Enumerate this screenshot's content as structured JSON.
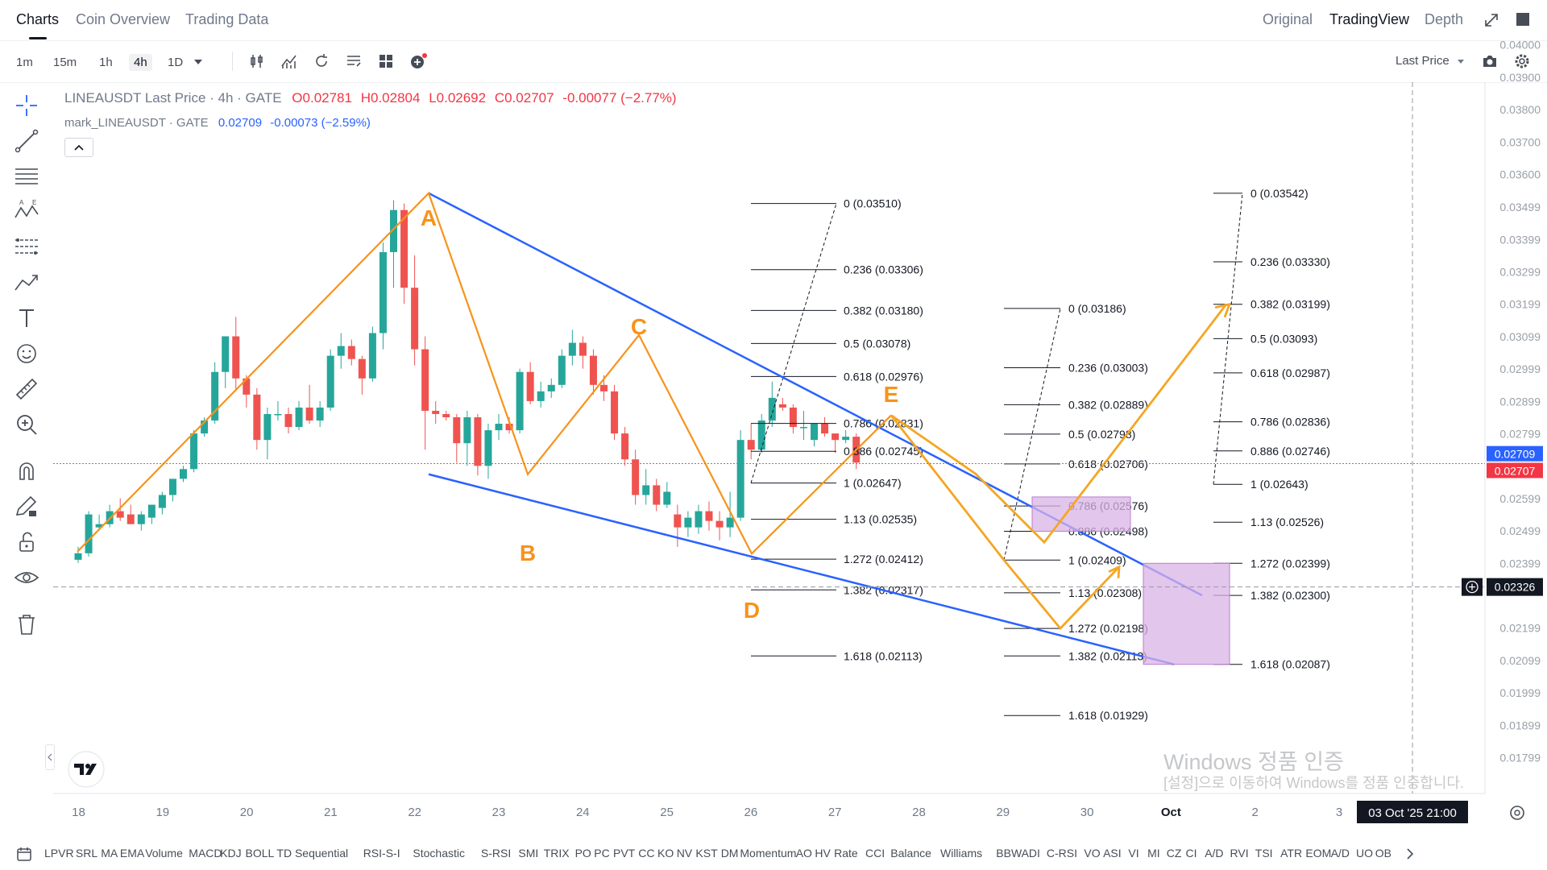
{
  "nav": {
    "tabs": [
      "Charts",
      "Coin Overview",
      "Trading Data"
    ],
    "views": [
      "Original",
      "TradingView",
      "Depth"
    ]
  },
  "toolbar": {
    "timeframes": [
      "1m",
      "15m",
      "1h",
      "4h",
      "1D"
    ],
    "active_timeframe": "4h",
    "price_source": "Last Price"
  },
  "legend": {
    "symbol": "LINEAUSDT Last Price · 4h · GATE",
    "open": "O0.02781",
    "high": "H0.02804",
    "low": "L0.02692",
    "close": "C0.02707",
    "change": "-0.00077 (−2.77%)",
    "mark_symbol": "mark_LINEAUSDT · GATE",
    "mark_value": "0.02709",
    "mark_change": "-0.00073 (−2.59%)"
  },
  "colors": {
    "up": "#26a69a",
    "down": "#ef5350",
    "pattern": "#f7931a",
    "trend": "#2962ff",
    "zone": "#d9b3e6"
  },
  "price_axis": {
    "ticks": [
      "0.04000",
      "0.03900",
      "0.03800",
      "0.03700",
      "0.03600",
      "0.03499",
      "0.03399",
      "0.03299",
      "0.03199",
      "0.03099",
      "0.02999",
      "0.02899",
      "0.02799",
      "0.02599",
      "0.02499",
      "0.02399",
      "0.02199",
      "0.02099",
      "0.01999",
      "0.01899",
      "0.01799"
    ],
    "mark_price_label": "0.02709",
    "last_price_label": "0.02707",
    "cursor_price_label": "0.02326"
  },
  "time_axis": {
    "ticks": [
      "18",
      "19",
      "20",
      "21",
      "22",
      "23",
      "24",
      "25",
      "26",
      "27",
      "28",
      "29",
      "30",
      "Oct",
      "2",
      "3"
    ],
    "cursor_time_label": "03 Oct '25   21:00"
  },
  "pattern_labels": [
    "A",
    "B",
    "C",
    "D",
    "E"
  ],
  "fib1": [
    "0 (0.03510)",
    "0.236 (0.03306)",
    "0.382 (0.03180)",
    "0.5 (0.03078)",
    "0.618 (0.02976)",
    "0.786 (0.02831)",
    "0.886 (0.02745)",
    "1 (0.02647)",
    "1.13 (0.02535)",
    "1.272 (0.02412)",
    "1.382 (0.02317)",
    "1.618 (0.02113)"
  ],
  "fib2": [
    "0 (0.03186)",
    "0.236 (0.03003)",
    "0.382 (0.02889)",
    "0.5 (0.02798)",
    "0.618 (0.02706)",
    "0.786 (0.02576)",
    "0.886 (0.02498)",
    "1 (0.02409)",
    "1.13 (0.02308)",
    "1.272 (0.02198)",
    "1.382 (0.02113)",
    "1.618 (0.01929)"
  ],
  "fib3": [
    "0 (0.03542)",
    "0.236 (0.03330)",
    "0.382 (0.03199)",
    "0.5 (0.03093)",
    "0.618 (0.02987)",
    "0.786 (0.02836)",
    "0.886 (0.02746)",
    "1 (0.02643)",
    "1.13 (0.02526)",
    "1.272 (0.02399)",
    "1.382 (0.02300)",
    "1.618 (0.02087)"
  ],
  "chart_data": {
    "type": "candlestick",
    "symbol": "LINEAUSDT",
    "interval": "4h",
    "ylim": [
      0.0178,
      0.0402
    ],
    "candles_ohlc": [
      [
        0.0241,
        0.0245,
        0.024,
        0.0243
      ],
      [
        0.0243,
        0.0256,
        0.0242,
        0.0255
      ],
      [
        0.0251,
        0.0255,
        0.025,
        0.0252
      ],
      [
        0.0252,
        0.0258,
        0.0251,
        0.0256
      ],
      [
        0.0256,
        0.026,
        0.0253,
        0.0254
      ],
      [
        0.0255,
        0.0258,
        0.0252,
        0.0252
      ],
      [
        0.0252,
        0.0256,
        0.025,
        0.0255
      ],
      [
        0.0254,
        0.0257,
        0.0252,
        0.0258
      ],
      [
        0.0257,
        0.0262,
        0.0255,
        0.0261
      ],
      [
        0.0261,
        0.0266,
        0.0259,
        0.0266
      ],
      [
        0.0266,
        0.027,
        0.0265,
        0.0269
      ],
      [
        0.0269,
        0.0281,
        0.0268,
        0.028
      ],
      [
        0.028,
        0.0285,
        0.0279,
        0.0284
      ],
      [
        0.0284,
        0.0302,
        0.0283,
        0.0299
      ],
      [
        0.0299,
        0.031,
        0.0294,
        0.031
      ],
      [
        0.031,
        0.0316,
        0.0293,
        0.0297
      ],
      [
        0.0297,
        0.0298,
        0.0288,
        0.0292
      ],
      [
        0.0292,
        0.0294,
        0.0275,
        0.0278
      ],
      [
        0.0278,
        0.0288,
        0.0272,
        0.0286
      ],
      [
        0.0286,
        0.029,
        0.0284,
        0.0286
      ],
      [
        0.0286,
        0.0288,
        0.028,
        0.0282
      ],
      [
        0.0282,
        0.029,
        0.0281,
        0.0288
      ],
      [
        0.0288,
        0.0295,
        0.0283,
        0.0284
      ],
      [
        0.0284,
        0.029,
        0.0282,
        0.0288
      ],
      [
        0.0288,
        0.0306,
        0.0287,
        0.0304
      ],
      [
        0.0304,
        0.0311,
        0.03,
        0.0307
      ],
      [
        0.0307,
        0.0309,
        0.0301,
        0.0303
      ],
      [
        0.0303,
        0.0304,
        0.0292,
        0.0297
      ],
      [
        0.0297,
        0.0313,
        0.0296,
        0.0311
      ],
      [
        0.0311,
        0.0339,
        0.0306,
        0.0336
      ],
      [
        0.0336,
        0.0352,
        0.0325,
        0.0349
      ],
      [
        0.0349,
        0.0351,
        0.032,
        0.0325
      ],
      [
        0.0325,
        0.0335,
        0.0301,
        0.0306
      ],
      [
        0.0306,
        0.031,
        0.0275,
        0.0287
      ],
      [
        0.0287,
        0.029,
        0.0283,
        0.0286
      ],
      [
        0.0286,
        0.0287,
        0.0284,
        0.0285
      ],
      [
        0.0285,
        0.0286,
        0.0271,
        0.0277
      ],
      [
        0.0277,
        0.0287,
        0.027,
        0.0285
      ],
      [
        0.0285,
        0.0286,
        0.0267,
        0.027
      ],
      [
        0.027,
        0.0283,
        0.0266,
        0.0281
      ],
      [
        0.0281,
        0.0286,
        0.0278,
        0.0283
      ],
      [
        0.0283,
        0.0285,
        0.028,
        0.0281
      ],
      [
        0.0281,
        0.03,
        0.028,
        0.0299
      ],
      [
        0.0299,
        0.0302,
        0.0289,
        0.029
      ],
      [
        0.029,
        0.0296,
        0.0288,
        0.0293
      ],
      [
        0.0293,
        0.0297,
        0.0291,
        0.0295
      ],
      [
        0.0295,
        0.0306,
        0.0294,
        0.0304
      ],
      [
        0.0304,
        0.0312,
        0.0301,
        0.0308
      ],
      [
        0.0308,
        0.031,
        0.03,
        0.0304
      ],
      [
        0.0304,
        0.0306,
        0.0292,
        0.0295
      ],
      [
        0.0295,
        0.0298,
        0.029,
        0.0293
      ],
      [
        0.0293,
        0.0295,
        0.0278,
        0.028
      ],
      [
        0.028,
        0.0282,
        0.027,
        0.0272
      ],
      [
        0.0272,
        0.0275,
        0.0258,
        0.0261
      ],
      [
        0.0261,
        0.0269,
        0.0258,
        0.0264
      ],
      [
        0.0264,
        0.0266,
        0.0256,
        0.0258
      ],
      [
        0.0258,
        0.0265,
        0.0257,
        0.0262
      ],
      [
        0.0255,
        0.0258,
        0.0245,
        0.0251
      ],
      [
        0.0251,
        0.0256,
        0.0248,
        0.0254
      ],
      [
        0.0251,
        0.0258,
        0.0249,
        0.0256
      ],
      [
        0.0256,
        0.0259,
        0.025,
        0.0253
      ],
      [
        0.0253,
        0.0256,
        0.0247,
        0.0251
      ],
      [
        0.0251,
        0.0262,
        0.0248,
        0.0254
      ],
      [
        0.0254,
        0.0281,
        0.0253,
        0.0278
      ],
      [
        0.0278,
        0.0283,
        0.0272,
        0.0275
      ],
      [
        0.0275,
        0.0286,
        0.0274,
        0.0284
      ],
      [
        0.0284,
        0.0296,
        0.0282,
        0.0291
      ],
      [
        0.0289,
        0.0291,
        0.0287,
        0.0288
      ],
      [
        0.0288,
        0.0289,
        0.028,
        0.0282
      ],
      [
        0.0282,
        0.0287,
        0.0278,
        0.0282
      ],
      [
        0.0278,
        0.0283,
        0.0276,
        0.0283
      ],
      [
        0.0283,
        0.0285,
        0.0279,
        0.028
      ],
      [
        0.028,
        0.028,
        0.0274,
        0.0278
      ],
      [
        0.0278,
        0.0281,
        0.0277,
        0.0279
      ],
      [
        0.0279,
        0.028,
        0.0269,
        0.0271
      ]
    ]
  },
  "watermark": {
    "title": "Windows 정품 인증",
    "subtitle": "[설정]으로 이동하여 Windows를 정품 인증합니다."
  },
  "indicators": [
    "LPVR",
    "SRL",
    "MA",
    "EMA",
    "Volume",
    "MACD",
    "KDJ",
    "BOLL",
    "TD Sequential",
    "RSI-S-I",
    "Stochastic",
    "S-RSI",
    "SMI",
    "TRIX",
    "PO",
    "PC",
    "PVT",
    "CC",
    "KO",
    "NV",
    "KST",
    "DM",
    "Momentum",
    "AO",
    "HV",
    "Rate",
    "CCI",
    "Balance",
    "Williams",
    "BBW",
    "ADI",
    "C-RSI",
    "VO",
    "ASI",
    "VI",
    "MI",
    "CZ",
    "CI",
    "A/D",
    "RVI",
    "TSI",
    "ATR",
    "EOM",
    "A/D",
    "UO",
    "OB"
  ]
}
